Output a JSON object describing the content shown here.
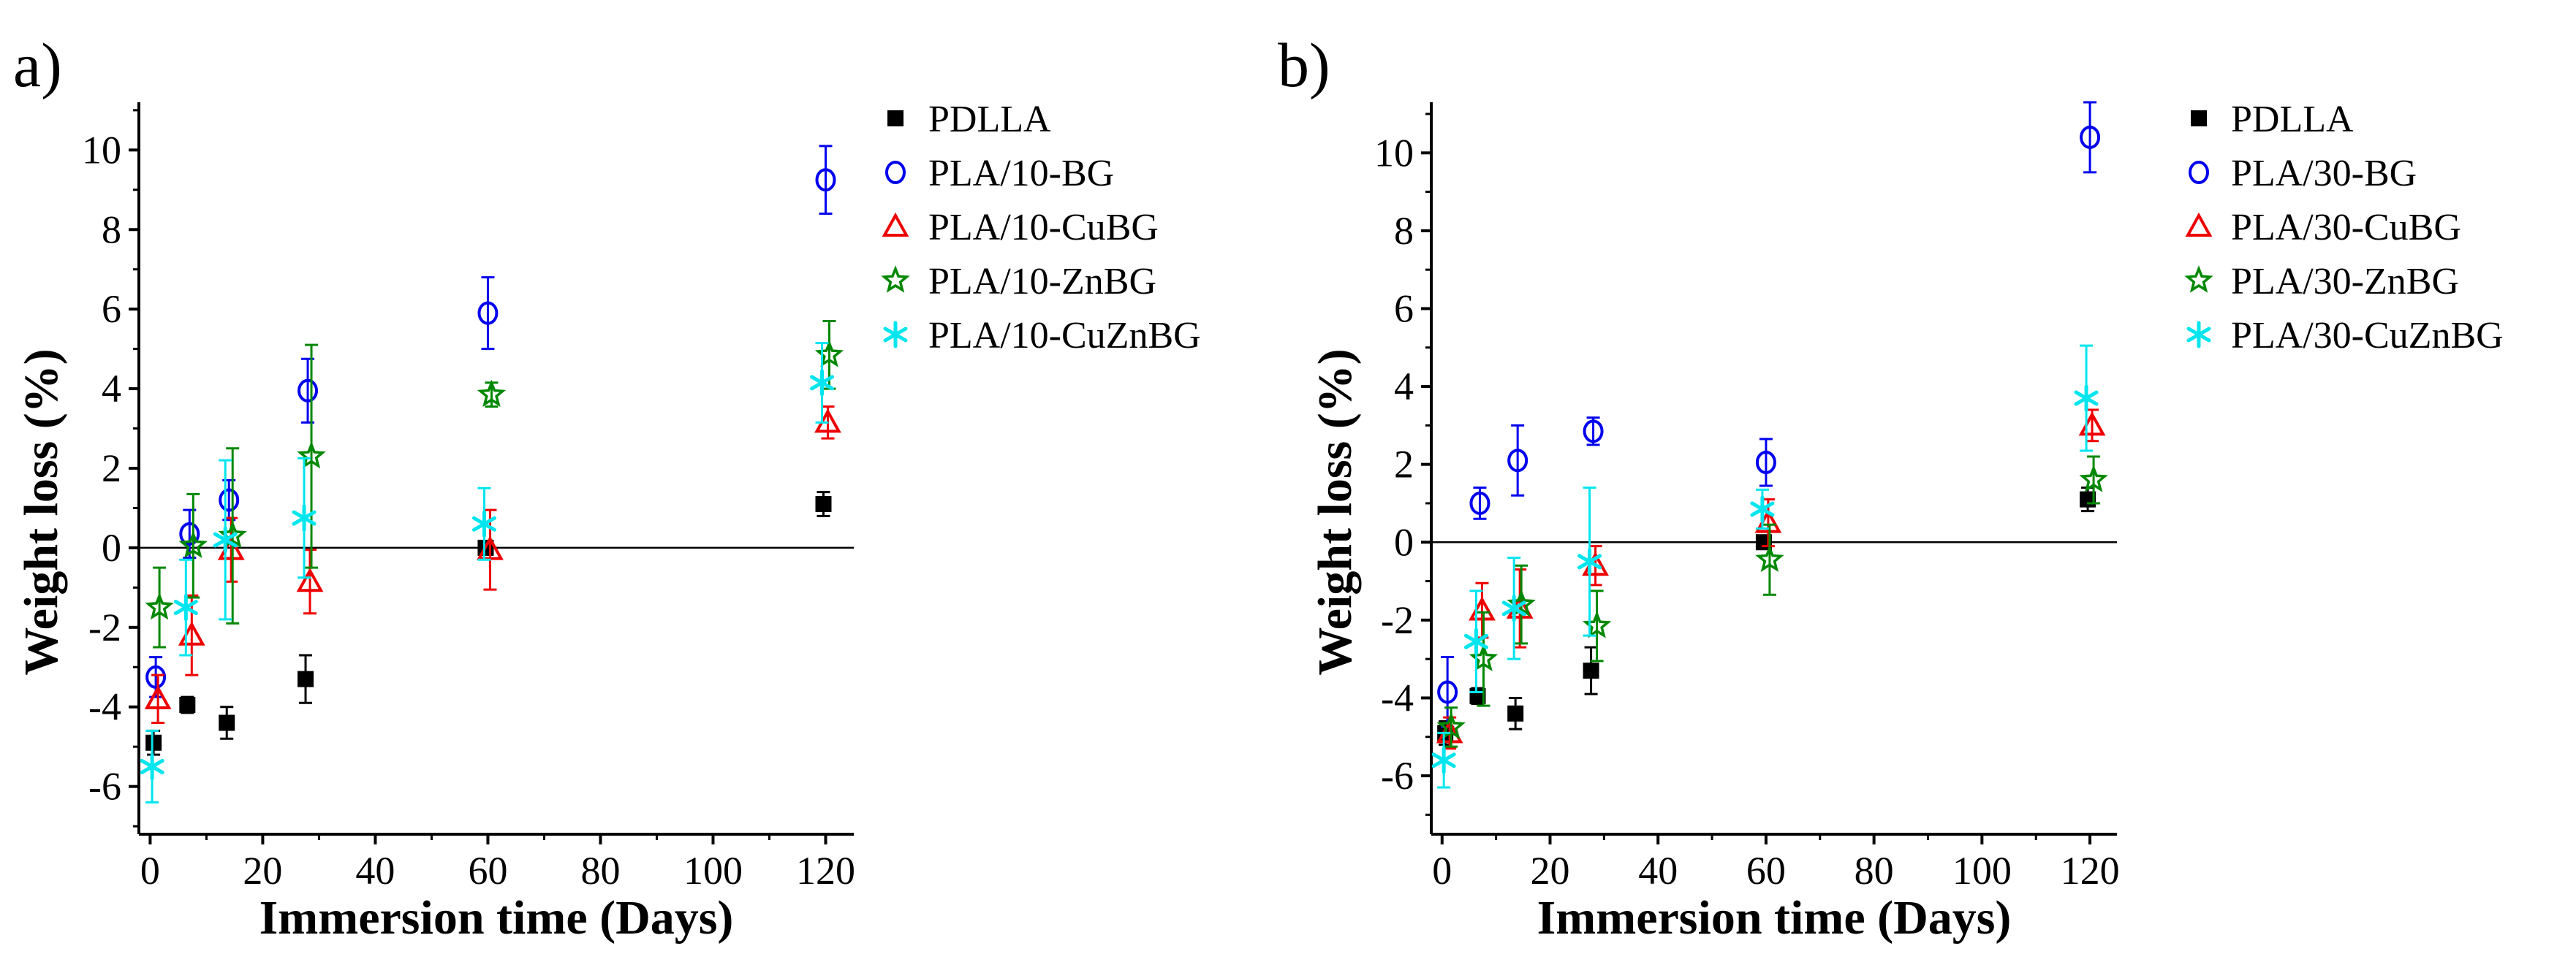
{
  "figure": {
    "chart_data": [
      {
        "panel_label": "a)",
        "type": "scatter",
        "xlabel": "Immersion time (Days)",
        "ylabel": "Weight loss (%)",
        "xlim": [
          -2,
          125
        ],
        "ylim": [
          -7.2,
          11.2
        ],
        "xticks": [
          "0",
          "20",
          "40",
          "60",
          "80",
          "100",
          "120"
        ],
        "xtick_values": [
          0,
          20,
          40,
          60,
          80,
          100,
          120
        ],
        "yticks": [
          "-6",
          "-4",
          "-2",
          "0",
          "2",
          "4",
          "6",
          "8",
          "10"
        ],
        "ytick_values": [
          -6,
          -4,
          -2,
          0,
          2,
          4,
          6,
          8,
          10
        ],
        "zero_line": true,
        "x": [
          1,
          7,
          14,
          28,
          60,
          120
        ],
        "series": [
          {
            "name": "PDLLA",
            "marker": "square",
            "color": "#000000",
            "values": [
              -4.9,
              -3.95,
              -4.4,
              -3.3,
              0.0,
              1.1
            ],
            "errors": [
              0.3,
              0.2,
              0.4,
              0.6,
              0.15,
              0.3
            ]
          },
          {
            "name": "PLA/10-BG",
            "marker": "circle",
            "color": "#0000ee",
            "values": [
              -3.25,
              0.35,
              1.2,
              3.95,
              5.9,
              9.25
            ],
            "errors": [
              0.5,
              0.6,
              0.5,
              0.8,
              0.9,
              0.85
            ]
          },
          {
            "name": "PLA/10-CuBG",
            "marker": "triangle",
            "color": "#ee0000",
            "values": [
              -3.8,
              -2.2,
              -0.05,
              -0.85,
              -0.05,
              3.15
            ],
            "errors": [
              0.6,
              1.0,
              0.8,
              0.8,
              1.0,
              0.4
            ]
          },
          {
            "name": "PLA/10-ZnBG",
            "marker": "star",
            "color": "#008800",
            "values": [
              -1.5,
              0.05,
              0.3,
              2.3,
              3.85,
              4.85
            ],
            "errors": [
              1.0,
              1.3,
              2.2,
              2.8,
              0.3,
              0.85
            ]
          },
          {
            "name": "PLA/10-CuZnBG",
            "marker": "asterisk",
            "color": "#00e5ee",
            "values": [
              -5.5,
              -1.5,
              0.2,
              0.75,
              0.6,
              4.15
            ],
            "errors": [
              0.9,
              1.2,
              2.0,
              1.5,
              0.9,
              1.0
            ]
          }
        ]
      },
      {
        "panel_label": "b)",
        "type": "scatter",
        "xlabel": "Immersion time (Days)",
        "ylabel": "Weight loss (%)",
        "xlim": [
          -2,
          125
        ],
        "ylim": [
          -7.5,
          11.3
        ],
        "xticks": [
          "0",
          "20",
          "40",
          "60",
          "80",
          "100",
          "120"
        ],
        "xtick_values": [
          0,
          20,
          40,
          60,
          80,
          100,
          120
        ],
        "yticks": [
          "-6",
          "-4",
          "-2",
          "0",
          "2",
          "4",
          "6",
          "8",
          "10"
        ],
        "ytick_values": [
          -6,
          -4,
          -2,
          0,
          2,
          4,
          6,
          8,
          10
        ],
        "zero_line": true,
        "x": [
          1,
          7,
          14,
          28,
          60,
          120
        ],
        "series": [
          {
            "name": "PDLLA",
            "marker": "square",
            "color": "#000000",
            "values": [
              -4.9,
              -3.95,
              -4.4,
              -3.3,
              0.0,
              1.1
            ],
            "errors": [
              0.3,
              0.2,
              0.4,
              0.6,
              0.15,
              0.3
            ]
          },
          {
            "name": "PLA/30-BG",
            "marker": "circle",
            "color": "#0000ee",
            "values": [
              -3.85,
              1.0,
              2.1,
              2.85,
              2.05,
              10.4
            ],
            "errors": [
              0.9,
              0.4,
              0.9,
              0.35,
              0.6,
              0.9
            ]
          },
          {
            "name": "PLA/30-CuBG",
            "marker": "triangle",
            "color": "#ee0000",
            "values": [
              -4.9,
              -1.75,
              -1.7,
              -0.6,
              0.5,
              3.0
            ],
            "errors": [
              0.4,
              0.7,
              1.0,
              0.5,
              0.6,
              0.4
            ]
          },
          {
            "name": "PLA/30-ZnBG",
            "marker": "star",
            "color": "#008800",
            "values": [
              -4.75,
              -3.0,
              -1.6,
              -2.15,
              -0.45,
              1.6
            ],
            "errors": [
              0.5,
              1.2,
              1.0,
              0.9,
              0.9,
              0.6
            ]
          },
          {
            "name": "PLA/30-CuZnBG",
            "marker": "asterisk",
            "color": "#00e5ee",
            "values": [
              -5.6,
              -2.55,
              -1.7,
              -0.5,
              0.85,
              3.7
            ],
            "errors": [
              0.7,
              1.3,
              1.3,
              1.9,
              0.5,
              1.35
            ]
          }
        ]
      }
    ]
  }
}
